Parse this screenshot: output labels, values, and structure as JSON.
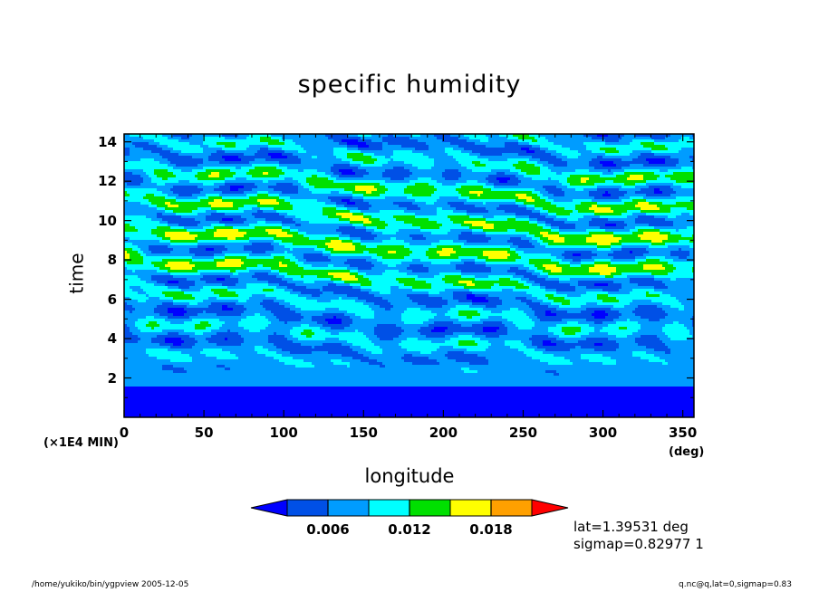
{
  "chart_data": {
    "type": "heatmap",
    "title": "specific humidity",
    "xlabel": "longitude",
    "ylabel": "time",
    "x_unit": "(deg)",
    "y_unit": "(×1E4 MIN)",
    "xlim": [
      0,
      357
    ],
    "ylim": [
      0,
      14.4
    ],
    "x_ticks": [
      0,
      50,
      100,
      150,
      200,
      250,
      300,
      350
    ],
    "y_ticks": [
      2,
      4,
      6,
      8,
      10,
      12,
      14
    ],
    "colorbar": {
      "levels": [
        0.003,
        0.006,
        0.009,
        0.012,
        0.015,
        0.018,
        0.021
      ],
      "tick_labels": [
        "0.006",
        "0.012",
        "0.018"
      ],
      "tick_values": [
        0.006,
        0.012,
        0.018
      ],
      "colors": [
        "#0000ff",
        "#0050e6",
        "#009cff",
        "#00ffff",
        "#00e000",
        "#ffff00",
        "#ffa000",
        "#ff0000"
      ],
      "extend": "both"
    },
    "grid": false
  },
  "meta": {
    "lat": "lat=1.39531 deg",
    "sigmap": "sigmap=0.82977 1"
  },
  "footer": {
    "left": "/home/yukiko/bin/ygpview  2005-12-05",
    "right": "q.nc@q,lat=0,sigmap=0.83"
  }
}
